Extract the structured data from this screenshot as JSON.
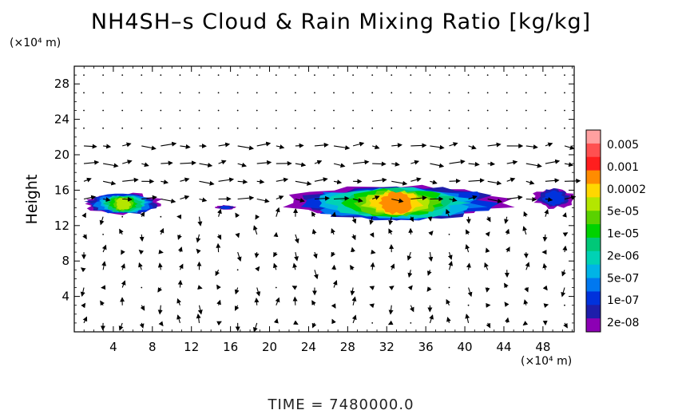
{
  "chart_data": {
    "type": "vector-field-contour",
    "title": "NH4SH–s Cloud & Rain Mixing Ratio [kg/kg]",
    "ylabel": "Height",
    "y_unit": "(×10⁴ m)",
    "x_unit": "(×10⁴ m)",
    "xlim": [
      0,
      51.2
    ],
    "ylim": [
      0,
      30
    ],
    "x_ticks": [
      "4",
      "8",
      "12",
      "16",
      "20",
      "24",
      "28",
      "32",
      "36",
      "40",
      "44",
      "48"
    ],
    "y_ticks": [
      "4",
      "8",
      "12",
      "16",
      "20",
      "24",
      "28"
    ],
    "x_tick_values": [
      4,
      8,
      12,
      16,
      20,
      24,
      28,
      32,
      36,
      40,
      44,
      48
    ],
    "y_tick_values": [
      4,
      8,
      12,
      16,
      20,
      24,
      28
    ],
    "colorbar": {
      "labels": [
        "0.005",
        "0.001",
        "0.0002",
        "5e-05",
        "1e-05",
        "2e-06",
        "5e-07",
        "1e-07",
        "2e-08"
      ],
      "colors": [
        "#ffa0a0",
        "#ff5050",
        "#ff1e1e",
        "#ff8c00",
        "#ffd700",
        "#b4e600",
        "#5ad200",
        "#00d200",
        "#00c878",
        "#00d2b4",
        "#00b4e6",
        "#0078f0",
        "#0032dc",
        "#1e1eaa",
        "#8c00b4"
      ]
    },
    "cloud_regions": [
      {
        "x": [
          1.0,
          9.0
        ],
        "y": [
          13.3,
          15.6
        ],
        "max_level": "5e-05"
      },
      {
        "x": [
          14.5,
          16.5
        ],
        "y": [
          13.8,
          14.3
        ],
        "max_level": "1e-07"
      },
      {
        "x": [
          22.0,
          44.0
        ],
        "y": [
          12.6,
          16.5
        ],
        "max_level": "0.0002"
      },
      {
        "x": [
          47.0,
          51.2
        ],
        "y": [
          14.0,
          16.2
        ],
        "max_level": "1e-07"
      }
    ],
    "time_label": "TIME",
    "time_value": "7480000.0"
  },
  "footer": {
    "text": "TIME = 7480000.0"
  }
}
